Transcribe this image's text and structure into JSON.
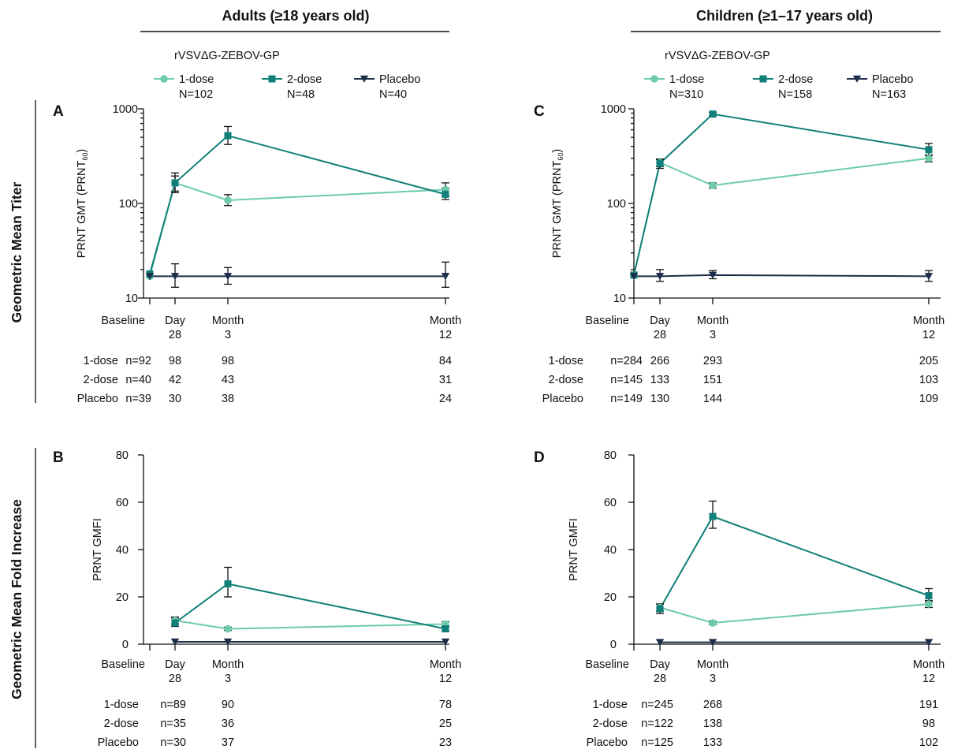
{
  "headers": {
    "left": "Adults (≥18 years old)",
    "right": "Children (≥1–17 years old)"
  },
  "row_labels": {
    "top": "Geometric Mean Titer",
    "bottom": "Geometric Mean Fold Increase"
  },
  "legend": {
    "title": "rVSVΔG-ZEBOV-GP",
    "adults": [
      {
        "name": "1-dose",
        "n": "N=102"
      },
      {
        "name": "2-dose",
        "n": "N=48"
      },
      {
        "name": "Placebo",
        "n": "N=40"
      }
    ],
    "children": [
      {
        "name": "1-dose",
        "n": "N=310"
      },
      {
        "name": "2-dose",
        "n": "N=158"
      },
      {
        "name": "Placebo",
        "n": "N=163"
      }
    ]
  },
  "colors": {
    "one_dose": "#6dcbaa",
    "two_dose": "#11807a",
    "placebo": "#1c2e4a"
  },
  "chart_data": [
    {
      "panel": "A",
      "type": "line",
      "ylabel": "PRNT GMT (PRNT60)",
      "ylabel_main": "PRNT GMT (PRNT",
      "ylabel_sub": "60",
      "ylabel_close": ")",
      "yscale": "log",
      "ylim": [
        10,
        1000
      ],
      "yticks": [
        10,
        100,
        1000
      ],
      "x_categories": [
        [
          "Baseline"
        ],
        [
          "Day",
          "28"
        ],
        [
          "Month",
          "3"
        ],
        [
          "Month",
          "12"
        ]
      ],
      "series": [
        {
          "name": "1-dose",
          "values": [
            17,
            165,
            108,
            140
          ],
          "err_low": [
            null,
            135,
            95,
            120
          ],
          "err_high": [
            null,
            195,
            124,
            165
          ]
        },
        {
          "name": "2-dose",
          "values": [
            18,
            165,
            520,
            125
          ],
          "err_low": [
            null,
            130,
            420,
            110
          ],
          "err_high": [
            null,
            210,
            650,
            145
          ]
        },
        {
          "name": "Placebo",
          "values": [
            17,
            17,
            17,
            17
          ],
          "err_low": [
            null,
            13,
            14,
            13
          ],
          "err_high": [
            null,
            23,
            21,
            24
          ]
        }
      ],
      "counts": [
        {
          "label": "1-dose",
          "first": "n=92",
          "values": [
            "98",
            "98",
            "84"
          ]
        },
        {
          "label": "2-dose",
          "first": "n=40",
          "values": [
            "42",
            "43",
            "31"
          ]
        },
        {
          "label": "Placebo",
          "first": "n=39",
          "values": [
            "30",
            "38",
            "24"
          ]
        }
      ]
    },
    {
      "panel": "B",
      "type": "line",
      "ylabel": "PRNT GMFI",
      "yscale": "linear",
      "ylim": [
        0,
        80
      ],
      "yticks": [
        0,
        20,
        40,
        60,
        80
      ],
      "x_categories": [
        [
          "Baseline"
        ],
        [
          "Day",
          "28"
        ],
        [
          "Month",
          "3"
        ],
        [
          "Month",
          "12"
        ]
      ],
      "series": [
        {
          "name": "1-dose",
          "values": [
            null,
            10,
            6.5,
            8.5
          ],
          "err_low": [
            null,
            8.5,
            5.8,
            7.5
          ],
          "err_high": [
            null,
            11.5,
            7.2,
            9.5
          ]
        },
        {
          "name": "2-dose",
          "values": [
            null,
            9,
            25.5,
            6.5
          ],
          "err_low": [
            null,
            7.5,
            20,
            5.5
          ],
          "err_high": [
            null,
            11,
            32.5,
            7.5
          ]
        },
        {
          "name": "Placebo",
          "values": [
            null,
            1,
            1,
            1
          ],
          "err_low": [
            null,
            null,
            null,
            null
          ],
          "err_high": [
            null,
            null,
            null,
            null
          ]
        }
      ],
      "counts": [
        {
          "label": "1-dose",
          "first": "n=89",
          "values": [
            "",
            "90",
            "78"
          ]
        },
        {
          "label": "2-dose",
          "first": "n=35",
          "values": [
            "",
            "36",
            "25"
          ]
        },
        {
          "label": "Placebo",
          "first": "n=30",
          "values": [
            "",
            "37",
            "23"
          ]
        }
      ]
    },
    {
      "panel": "C",
      "type": "line",
      "ylabel": "PRNT GMT (PRNT60)",
      "ylabel_main": "PRNT GMT (PRNT",
      "ylabel_sub": "60",
      "ylabel_close": ")",
      "yscale": "log",
      "ylim": [
        10,
        1000
      ],
      "yticks": [
        10,
        100,
        1000
      ],
      "x_categories": [
        [
          "Baseline"
        ],
        [
          "Day",
          "28"
        ],
        [
          "Month",
          "3"
        ],
        [
          "Month",
          "12"
        ]
      ],
      "series": [
        {
          "name": "1-dose",
          "values": [
            17.5,
            270,
            155,
            300
          ],
          "err_low": [
            null,
            245,
            145,
            275
          ],
          "err_high": [
            null,
            295,
            165,
            325
          ]
        },
        {
          "name": "2-dose",
          "values": [
            17.5,
            265,
            880,
            370
          ],
          "err_low": [
            null,
            235,
            840,
            320
          ],
          "err_high": [
            null,
            290,
            920,
            430
          ]
        },
        {
          "name": "Placebo",
          "values": [
            17,
            17,
            17.5,
            17
          ],
          "err_low": [
            null,
            15,
            16,
            15
          ],
          "err_high": [
            null,
            20,
            19.5,
            19.5
          ]
        }
      ],
      "counts": [
        {
          "label": "1-dose",
          "first": "n=284",
          "values": [
            "266",
            "293",
            "205"
          ]
        },
        {
          "label": "2-dose",
          "first": "n=145",
          "values": [
            "133",
            "151",
            "103"
          ]
        },
        {
          "label": "Placebo",
          "first": "n=149",
          "values": [
            "130",
            "144",
            "109"
          ]
        }
      ]
    },
    {
      "panel": "D",
      "type": "line",
      "ylabel": "PRNT GMFI",
      "yscale": "linear",
      "ylim": [
        0,
        80
      ],
      "yticks": [
        0,
        20,
        40,
        60,
        80
      ],
      "x_categories": [
        [
          "Baseline"
        ],
        [
          "Day",
          "28"
        ],
        [
          "Month",
          "3"
        ],
        [
          "Month",
          "12"
        ]
      ],
      "series": [
        {
          "name": "1-dose",
          "values": [
            null,
            15.5,
            9,
            17
          ],
          "err_low": [
            null,
            14,
            8.3,
            15.5
          ],
          "err_high": [
            null,
            17,
            9.7,
            18.5
          ]
        },
        {
          "name": "2-dose",
          "values": [
            null,
            15,
            54,
            20.5
          ],
          "err_low": [
            null,
            13,
            49,
            18
          ],
          "err_high": [
            null,
            17,
            60.5,
            23.5
          ]
        },
        {
          "name": "Placebo",
          "values": [
            null,
            0.8,
            0.8,
            0.8
          ],
          "err_low": [
            null,
            null,
            null,
            null
          ],
          "err_high": [
            null,
            null,
            null,
            null
          ]
        }
      ],
      "counts": [
        {
          "label": "1-dose",
          "first": "n=245",
          "values": [
            "",
            "268",
            "191"
          ]
        },
        {
          "label": "2-dose",
          "first": "n=122",
          "values": [
            "",
            "138",
            "98"
          ]
        },
        {
          "label": "Placebo",
          "first": "n=125",
          "values": [
            "",
            "133",
            "102"
          ]
        }
      ]
    }
  ]
}
